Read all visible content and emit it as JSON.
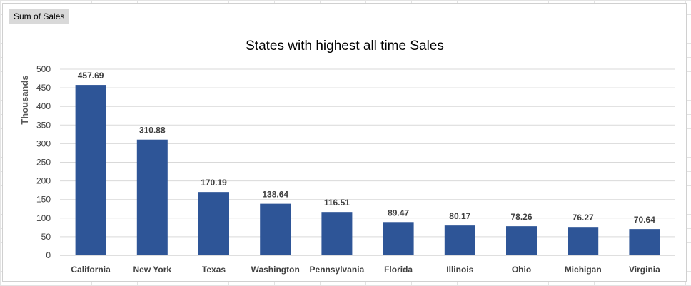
{
  "field_button": {
    "label": "Sum of Sales"
  },
  "colors": {
    "bar": "#2e5597",
    "gridline": "#d9d9d9",
    "axis_line": "#bfbfbf"
  },
  "chart_data": {
    "type": "bar",
    "title": "States with highest all time Sales",
    "xlabel": "",
    "ylabel": "Thousands",
    "categories": [
      "California",
      "New York",
      "Texas",
      "Washington",
      "Pennsylvania",
      "Florida",
      "Illinois",
      "Ohio",
      "Michigan",
      "Virginia"
    ],
    "values": [
      457.69,
      310.88,
      170.19,
      138.64,
      116.51,
      89.47,
      80.17,
      78.26,
      76.27,
      70.64
    ],
    "data_labels": [
      "457.69",
      "310.88",
      "170.19",
      "138.64",
      "116.51",
      "89.47",
      "80.17",
      "78.26",
      "76.27",
      "70.64"
    ],
    "ylim": [
      0,
      500
    ],
    "yticks": [
      0,
      50,
      100,
      150,
      200,
      250,
      300,
      350,
      400,
      450,
      500
    ],
    "grid": true,
    "legend": "none"
  }
}
